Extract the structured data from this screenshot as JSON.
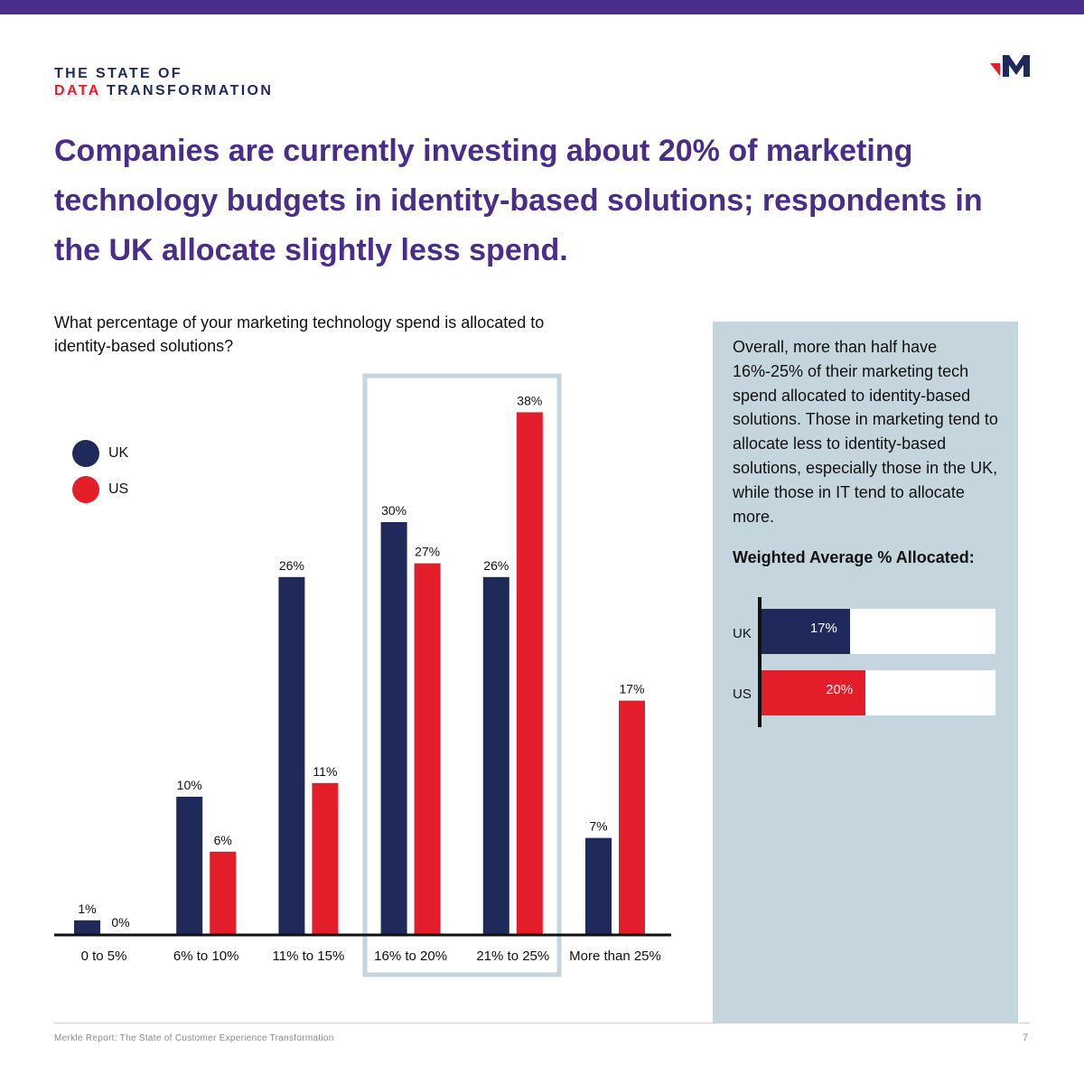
{
  "header": {
    "brand_line1": "THE STATE OF",
    "brand_accent": "DATA",
    "brand_rest": "TRANSFORMATION",
    "logo_icon": "merkle-m-logo-icon"
  },
  "headline": "Companies are currently investing about 20% of marketing technology budgets in identity-based solutions; respondents in the UK allocate slightly less spend.",
  "colors": {
    "purple": "#4a2d8a",
    "uk": "#1f2a5a",
    "us": "#e31e2a",
    "panel": "#c5d5de"
  },
  "chart_data": [
    {
      "type": "bar",
      "title": "What percentage of your marketing technology spend is allocated to identity-based solutions?",
      "categories": [
        "0 to 5%",
        "6% to 10%",
        "11% to 15%",
        "16% to 20%",
        "21% to 25%",
        "More than 25%"
      ],
      "series": [
        {
          "name": "UK",
          "values": [
            1,
            10,
            26,
            30,
            26,
            7
          ],
          "labels": [
            "1%",
            "10%",
            "26%",
            "30%",
            "26%",
            "7%"
          ]
        },
        {
          "name": "US",
          "values": [
            0,
            6,
            11,
            27,
            38,
            17
          ],
          "labels": [
            "0%",
            "6%",
            "11%",
            "27%",
            "38%",
            "17%"
          ]
        }
      ],
      "highlighted_categories": [
        "16% to 20%",
        "21% to 25%"
      ],
      "legend_position": "top-left",
      "ylim": [
        0,
        40
      ],
      "xlabel": "",
      "ylabel": ""
    },
    {
      "type": "bar",
      "orientation": "horizontal",
      "title": "Weighted Average % Allocated:",
      "categories": [
        "UK",
        "US"
      ],
      "values": [
        17,
        20
      ],
      "labels": [
        "17%",
        "20%"
      ],
      "xlim": [
        0,
        45
      ]
    }
  ],
  "panel": {
    "text": "Overall, more than half have 16%-25% of their marketing tech spend allocated to identity-based solutions. Those in marketing tend to allocate less to identity-based solutions, especially those in the UK, while those in IT tend to allocate more."
  },
  "footer": {
    "text": "Merkle Report: The State of Customer Experience Transformation",
    "page": "7"
  }
}
